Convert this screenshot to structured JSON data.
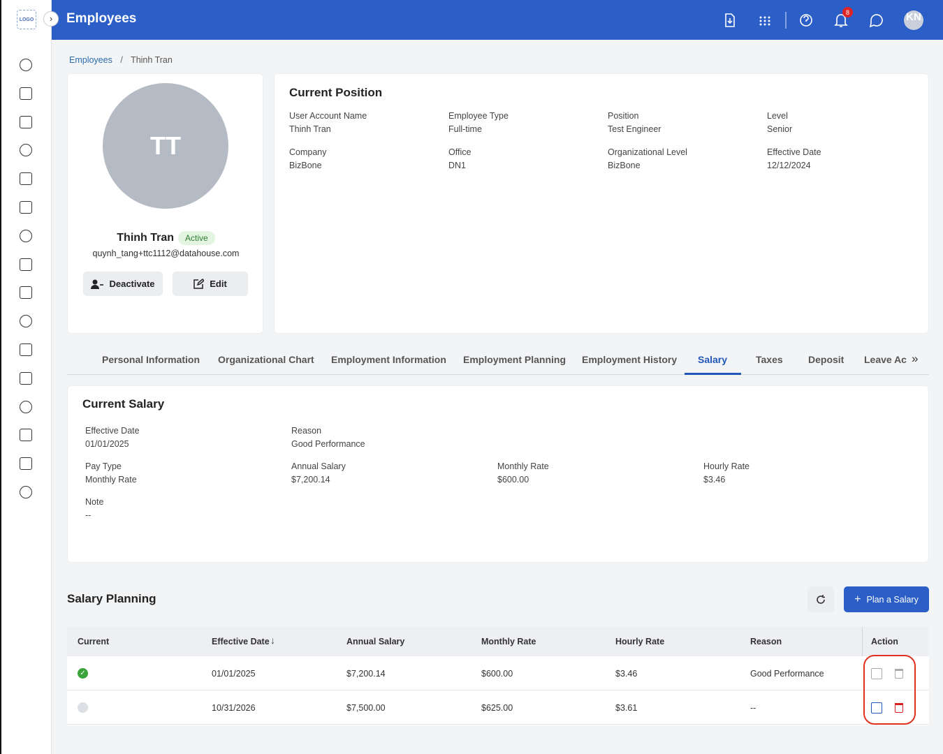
{
  "header": {
    "logo": "LOGO",
    "title": "Employees",
    "notification_count": "8",
    "avatar": "KN"
  },
  "breadcrumb": {
    "items": [
      "Employees",
      "Thinh Tran"
    ],
    "separator": "/"
  },
  "profile": {
    "initials": "TT",
    "name": "Thinh Tran",
    "status": "Active",
    "email": "quynh_tang+ttc1112@datahouse.com",
    "buttons": [
      "Deactivate",
      "Edit"
    ]
  },
  "current_position": {
    "title": "Current Position",
    "fields": [
      {
        "label": "User Account Name",
        "value": "Thinh Tran"
      },
      {
        "label": "Employee Type",
        "value": "Full-time"
      },
      {
        "label": "Position",
        "value": "Test Engineer"
      },
      {
        "label": "Level",
        "value": "Senior"
      },
      {
        "label": "Company",
        "value": "BizBone"
      },
      {
        "label": "Office",
        "value": "DN1"
      },
      {
        "label": "Organizational Level",
        "value": "BizBone"
      },
      {
        "label": "Effective Date",
        "value": "12/12/2024"
      }
    ]
  },
  "tabs": {
    "items": [
      "Personal Information",
      "Organizational Chart",
      "Employment Information",
      "Employment Planning",
      "Employment History",
      "Salary",
      "Taxes",
      "Deposit",
      "Leave Ac"
    ],
    "active": 5
  },
  "current_salary": {
    "title": "Current Salary",
    "rows": [
      [
        {
          "label": "Effective Date",
          "value": "01/01/2025"
        },
        {
          "label": "Reason",
          "value": "Good Performance"
        }
      ],
      [
        {
          "label": "Pay Type",
          "value": "Monthly Rate"
        },
        {
          "label": "Annual Salary",
          "value": "$7,200.14"
        },
        {
          "label": "Monthly Rate",
          "value": "$600.00"
        },
        {
          "label": "Hourly Rate",
          "value": "$3.46"
        }
      ],
      [
        {
          "label": "Note",
          "value": "--"
        }
      ]
    ]
  },
  "salary_planning": {
    "title": "Salary Planning",
    "button": "Plan a Salary",
    "table": {
      "columns": [
        "Current",
        "Effective Date",
        "Annual Salary",
        "Monthly Rate",
        "Hourly Rate",
        "Reason",
        "Action"
      ],
      "sort_column": 1,
      "rows": [
        {
          "current": true,
          "cells": [
            "01/01/2025",
            "$7,200.14",
            "$600.00",
            "$3.46",
            "Good Performance"
          ]
        },
        {
          "current": false,
          "cells": [
            "10/31/2026",
            "$7,500.00",
            "$625.00",
            "$3.61",
            "--"
          ]
        }
      ]
    }
  }
}
